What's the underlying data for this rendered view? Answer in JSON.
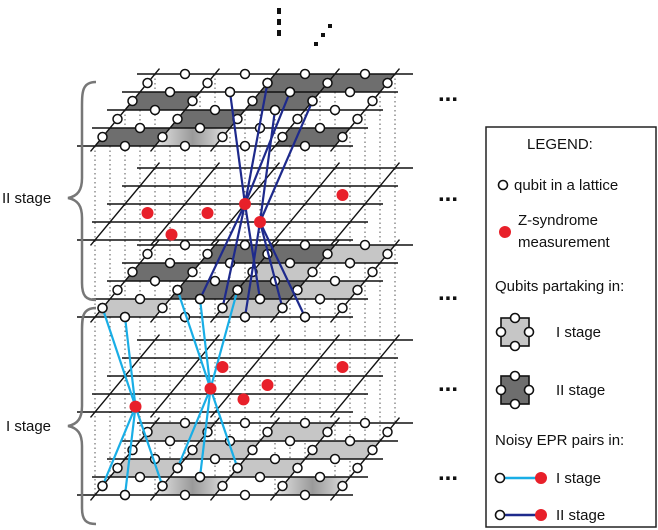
{
  "stage_labels": {
    "stage2": "II stage",
    "stage1": "I stage"
  },
  "legend": {
    "title": "LEGEND:",
    "qubit": "qubit in a lattice",
    "syndrome_line1": "Z-syndrome",
    "syndrome_line2": "measurement",
    "partaking_header": "Qubits partaking in:",
    "partaking_stage1": "I stage",
    "partaking_stage2": "II stage",
    "epr_header": "Noisy EPR pairs in:",
    "epr_stage1": "I stage",
    "epr_stage2": "II stage"
  },
  "ellipsis": "...",
  "colors": {
    "light_plaquette": "#c6c6c6",
    "dark_plaquette": "#6e6e6e",
    "syndrome_red": "#e8202a",
    "epr_stage1": "#19aee6",
    "epr_stage2": "#1e2a8c"
  }
}
